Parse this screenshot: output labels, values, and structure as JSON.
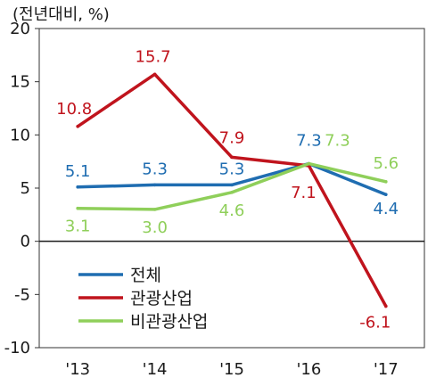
{
  "chart_data": {
    "type": "line",
    "unit_label": "(전년대비, %)",
    "categories": [
      "'13",
      "'14",
      "'15",
      "'16",
      "'17"
    ],
    "ylim": [
      -10,
      20
    ],
    "yticks": [
      20,
      15,
      10,
      5,
      0,
      -5,
      -10
    ],
    "legend_position": "bottom-left",
    "series": [
      {
        "name": "전체",
        "color": "#1f6db1",
        "values": [
          5.1,
          5.3,
          5.3,
          7.3,
          4.4
        ],
        "labels": [
          "5.1",
          "5.3",
          "5.3",
          "7.3",
          "4.4"
        ]
      },
      {
        "name": "관광산업",
        "color": "#c0141d",
        "values": [
          10.8,
          15.7,
          7.9,
          7.1,
          -6.1
        ],
        "labels": [
          "10.8",
          "15.7",
          "7.9",
          "7.1",
          "-6.1"
        ]
      },
      {
        "name": "비관광산업",
        "color": "#8fcf5a",
        "values": [
          3.1,
          3.0,
          4.6,
          7.3,
          5.6
        ],
        "labels": [
          "3.1",
          "3.0",
          "4.6",
          "7.3",
          "5.6"
        ]
      }
    ]
  }
}
